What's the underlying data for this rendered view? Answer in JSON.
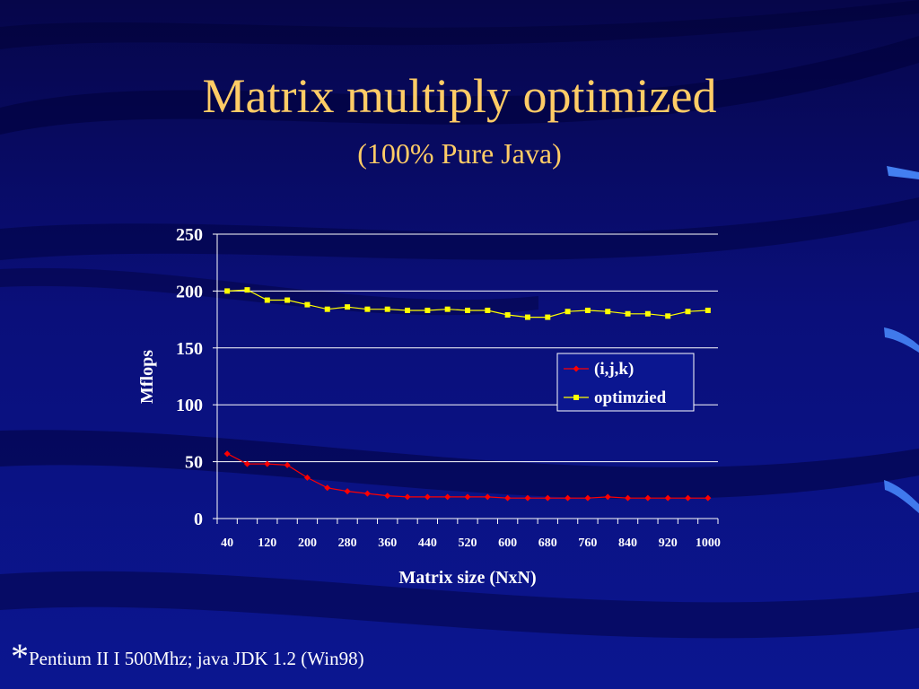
{
  "slide": {
    "title": "Matrix multiply optimized",
    "subtitle": "(100% Pure Java)",
    "footnote_star": "*",
    "footnote": "Pentium II I 500Mhz;  java JDK 1.2 (Win98)"
  },
  "colors": {
    "title": "#ffcc66",
    "series_ijk": "#ff0000",
    "series_opt": "#ffff00",
    "text": "#ffffff",
    "grid": "#ffffff"
  },
  "chart_data": {
    "type": "line",
    "xlabel": "Matrix size (NxN)",
    "ylabel": "Mflops",
    "ylim": [
      0,
      250
    ],
    "yticks": [
      0,
      50,
      100,
      150,
      200,
      250
    ],
    "grid": true,
    "legend_position": "right",
    "categories": [
      40,
      80,
      120,
      160,
      200,
      240,
      280,
      320,
      360,
      400,
      440,
      480,
      520,
      560,
      600,
      640,
      680,
      720,
      760,
      800,
      840,
      880,
      920,
      960,
      1000
    ],
    "tick_labels": [
      "40",
      "",
      "120",
      "",
      "200",
      "",
      "280",
      "",
      "360",
      "",
      "440",
      "",
      "520",
      "",
      "600",
      "",
      "680",
      "",
      "760",
      "",
      "840",
      "",
      "920",
      "",
      "1000"
    ],
    "series": [
      {
        "name": "(i,j,k)",
        "marker": "diamond",
        "values": [
          57,
          48,
          48,
          47,
          36,
          27,
          24,
          22,
          20,
          19,
          19,
          19,
          19,
          19,
          18,
          18,
          18,
          18,
          18,
          19,
          18,
          18,
          18,
          18,
          18
        ]
      },
      {
        "name": "optimzied",
        "marker": "square",
        "values": [
          200,
          201,
          192,
          192,
          188,
          184,
          186,
          184,
          184,
          183,
          183,
          184,
          183,
          183,
          179,
          177,
          177,
          182,
          183,
          182,
          180,
          180,
          178,
          182,
          183
        ]
      }
    ]
  }
}
